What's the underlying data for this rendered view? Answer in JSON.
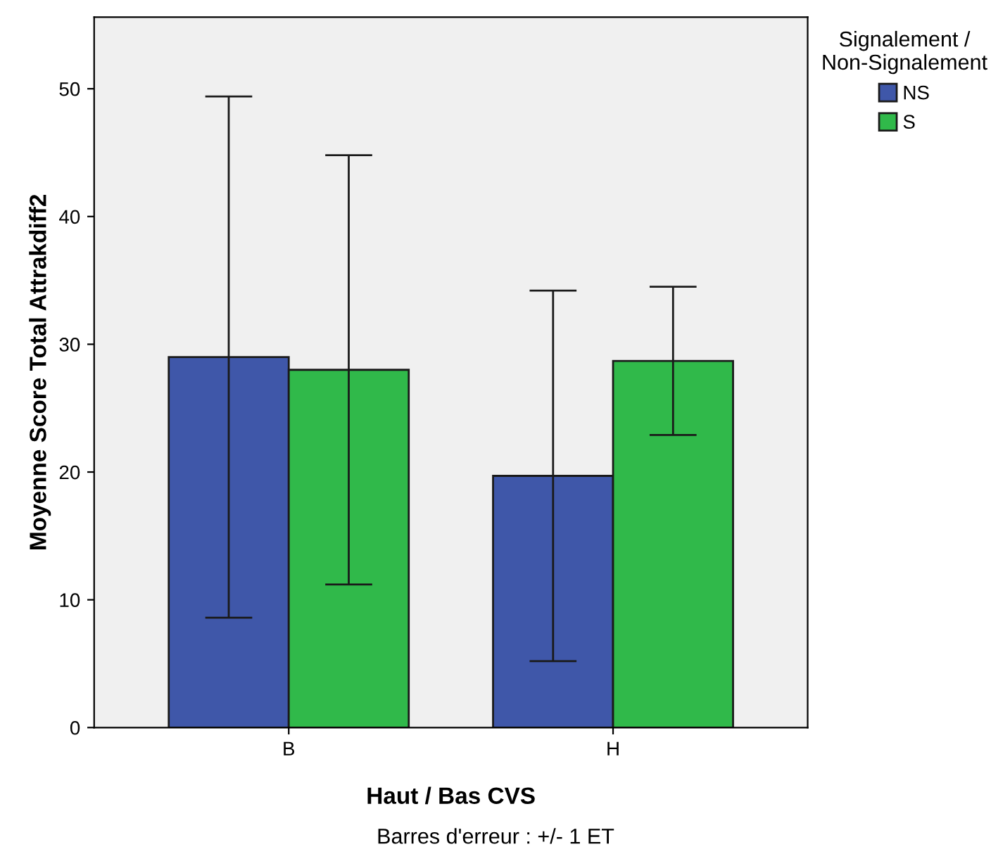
{
  "chart_data": {
    "type": "bar",
    "xlabel": "Haut / Bas CVS",
    "ylabel": "Moyenne Score Total Attrakdiff2",
    "legend_title": "Signalement /\nNon-Signalement",
    "categories": [
      "B",
      "H"
    ],
    "series": [
      {
        "name": "NS",
        "color": "#3f57a9",
        "values": [
          29.0,
          19.7
        ],
        "errors": [
          20.4,
          14.5
        ]
      },
      {
        "name": "S",
        "color": "#30b94a",
        "values": [
          28.0,
          28.7
        ],
        "errors": [
          16.8,
          5.8
        ]
      }
    ],
    "ylim": [
      0,
      55.6
    ],
    "yticks": [
      0,
      10,
      20,
      30,
      40,
      50
    ],
    "grid": false,
    "legend": "top right",
    "annotations": [
      "Barres d'erreur : +/- 1 ET"
    ]
  }
}
